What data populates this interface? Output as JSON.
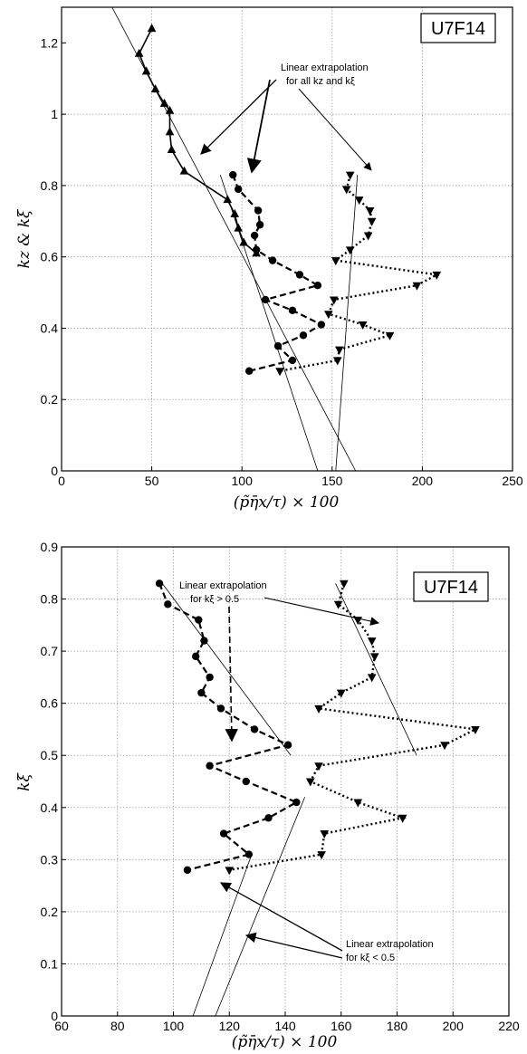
{
  "chart_data": [
    {
      "type": "line",
      "box_label": "U7F14",
      "xlabel": "(p̃η̄x/τ) × 100",
      "ylabel": "kz & kξ",
      "xlim": [
        0,
        250
      ],
      "ylim": [
        0,
        1.3
      ],
      "xticks": [
        0,
        50,
        100,
        150,
        200,
        250
      ],
      "yticks": [
        0,
        0.2,
        0.4,
        0.6,
        0.8,
        1,
        1.2
      ],
      "xtick_labels": [
        "0",
        "50",
        "100",
        "150",
        "200",
        "250"
      ],
      "ytick_labels": [
        "0",
        "0.2",
        "0.4",
        "0.6",
        "0.8",
        "1",
        "1.2"
      ],
      "grid": true,
      "annotation": [
        "Linear extrapolation",
        "for all kz and kξ"
      ],
      "series": [
        {
          "marker": "triangle-up",
          "linestyle": "solid",
          "x": [
            50,
            43,
            47,
            52,
            57,
            60,
            60,
            61,
            68,
            92,
            96,
            98,
            101,
            108
          ],
          "y": [
            1.24,
            1.17,
            1.12,
            1.07,
            1.03,
            1.01,
            0.95,
            0.9,
            0.84,
            0.76,
            0.72,
            0.68,
            0.64,
            0.61
          ]
        },
        {
          "marker": "circle",
          "linestyle": "dashed",
          "x": [
            95,
            98,
            109,
            110,
            107,
            108,
            117,
            132,
            142,
            113,
            128,
            144,
            134,
            120,
            128,
            104
          ],
          "y": [
            0.83,
            0.79,
            0.73,
            0.69,
            0.66,
            0.62,
            0.59,
            0.55,
            0.52,
            0.48,
            0.45,
            0.41,
            0.38,
            0.35,
            0.31,
            0.28
          ]
        },
        {
          "marker": "triangle-down",
          "linestyle": "dotted",
          "x": [
            160,
            158,
            165,
            171,
            172,
            170,
            160,
            152,
            208,
            197,
            151,
            148,
            167,
            182,
            154,
            153,
            121
          ],
          "y": [
            0.83,
            0.79,
            0.76,
            0.73,
            0.7,
            0.66,
            0.62,
            0.59,
            0.55,
            0.52,
            0.48,
            0.44,
            0.41,
            0.38,
            0.34,
            0.31,
            0.28
          ]
        }
      ],
      "extrapolation_lines": [
        {
          "x": [
            28,
            163
          ],
          "y": [
            1.3,
            0.0
          ]
        },
        {
          "x": [
            88,
            142
          ],
          "y": [
            0.83,
            0.0
          ]
        },
        {
          "x": [
            164,
            152
          ],
          "y": [
            0.83,
            0.0
          ]
        }
      ]
    },
    {
      "type": "line",
      "box_label": "U7F14",
      "xlabel": "(p̃η̄x/τ) × 100",
      "ylabel": "kξ",
      "xlim": [
        60,
        220
      ],
      "ylim": [
        0,
        0.9
      ],
      "xticks": [
        60,
        80,
        100,
        120,
        140,
        160,
        180,
        200,
        220
      ],
      "yticks": [
        0,
        0.1,
        0.2,
        0.3,
        0.4,
        0.5,
        0.6,
        0.7,
        0.8,
        0.9
      ],
      "xtick_labels": [
        "60",
        "80",
        "100",
        "120",
        "140",
        "160",
        "180",
        "200",
        "220"
      ],
      "ytick_labels": [
        "0",
        "0.1",
        "0.2",
        "0.3",
        "0.4",
        "0.5",
        "0.6",
        "0.7",
        "0.8",
        "0.9"
      ],
      "grid": true,
      "annotations": [
        [
          "Linear extrapolation",
          "for kξ > 0.5"
        ],
        [
          "Linear extrapolation",
          "for kξ < 0.5"
        ]
      ],
      "series": [
        {
          "marker": "circle",
          "linestyle": "dashed",
          "x": [
            95,
            98,
            109,
            111,
            108,
            113,
            110,
            117,
            129,
            141,
            113,
            126,
            144,
            134,
            118,
            127,
            105
          ],
          "y": [
            0.83,
            0.79,
            0.76,
            0.72,
            0.69,
            0.65,
            0.62,
            0.59,
            0.55,
            0.52,
            0.48,
            0.45,
            0.41,
            0.38,
            0.35,
            0.31,
            0.28
          ]
        },
        {
          "marker": "triangle-down",
          "linestyle": "dotted",
          "x": [
            161,
            159,
            166,
            171,
            172,
            171,
            160,
            152,
            208,
            197,
            152,
            149,
            166,
            182,
            154,
            153,
            120
          ],
          "y": [
            0.83,
            0.79,
            0.76,
            0.72,
            0.69,
            0.65,
            0.62,
            0.59,
            0.55,
            0.52,
            0.48,
            0.45,
            0.41,
            0.38,
            0.35,
            0.31,
            0.28
          ]
        }
      ],
      "extrapolation_lines": [
        {
          "x": [
            96,
            142
          ],
          "y": [
            0.83,
            0.5
          ]
        },
        {
          "x": [
            158,
            187
          ],
          "y": [
            0.83,
            0.5
          ]
        },
        {
          "x": [
            128,
            107
          ],
          "y": [
            0.31,
            0.0
          ]
        },
        {
          "x": [
            147,
            115
          ],
          "y": [
            0.42,
            0.0
          ]
        }
      ]
    }
  ]
}
